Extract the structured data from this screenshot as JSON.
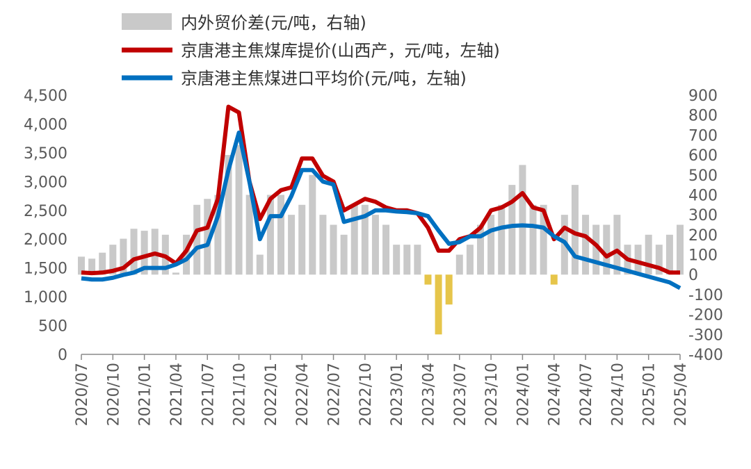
{
  "chart_data": {
    "type": "bar-line",
    "categories": [
      "2020/07",
      null,
      null,
      "2020/10",
      null,
      null,
      "2021/01",
      null,
      null,
      "2021/04",
      null,
      null,
      "2021/07",
      null,
      null,
      "2021/10",
      null,
      null,
      "2022/01",
      null,
      null,
      "2022/04",
      null,
      null,
      "2022/07",
      null,
      null,
      "2022/10",
      null,
      null,
      "2023/01",
      null,
      null,
      "2023/04",
      null,
      null,
      "2023/07",
      null,
      null,
      "2023/10",
      null,
      null,
      "2024/01",
      null,
      null,
      "2024/04",
      null,
      null,
      "2024/07",
      null,
      null,
      "2024/10",
      null,
      null,
      "2025/01",
      null,
      null,
      "2025/04"
    ],
    "series": [
      {
        "name": "内外贸价差(元/吨，右轴)",
        "kind": "bar",
        "axis": "y2",
        "color": "#c9c9c9",
        "negative_color": "#e6c54a",
        "values": [
          90,
          80,
          110,
          150,
          180,
          230,
          220,
          230,
          200,
          10,
          200,
          350,
          380,
          400,
          600,
          650,
          400,
          100,
          400,
          400,
          300,
          350,
          500,
          300,
          250,
          200,
          350,
          350,
          300,
          250,
          150,
          150,
          150,
          -50,
          -300,
          -150,
          100,
          150,
          250,
          300,
          350,
          450,
          550,
          350,
          350,
          -50,
          300,
          450,
          300,
          250,
          250,
          300,
          150,
          150,
          200,
          150,
          200,
          250
        ]
      },
      {
        "name": "京唐港主焦煤库提价(山西产，元/吨，左轴)",
        "kind": "line",
        "color": "#c00000",
        "values": [
          1420,
          1410,
          1420,
          1450,
          1500,
          1650,
          1700,
          1750,
          1700,
          1580,
          1800,
          2150,
          2200,
          2700,
          4300,
          4200,
          3000,
          2350,
          2700,
          2850,
          2900,
          3400,
          3400,
          3100,
          3000,
          2500,
          2600,
          2700,
          2650,
          2550,
          2500,
          2500,
          2450,
          2200,
          1800,
          1800,
          2000,
          2050,
          2200,
          2500,
          2550,
          2650,
          2800,
          2550,
          2500,
          2000,
          2200,
          2100,
          2050,
          1900,
          1700,
          1800,
          1650,
          1600,
          1550,
          1500,
          1420,
          1420
        ]
      },
      {
        "name": "京唐港主焦煤进口平均价(元/吨，左轴)",
        "kind": "line",
        "color": "#0070c0",
        "values": [
          1320,
          1300,
          1300,
          1330,
          1380,
          1420,
          1500,
          1500,
          1500,
          1560,
          1650,
          1850,
          1900,
          2400,
          3200,
          3850,
          3000,
          2000,
          2400,
          2400,
          2750,
          3200,
          3200,
          3000,
          2950,
          2300,
          2350,
          2400,
          2500,
          2500,
          2480,
          2470,
          2450,
          2400,
          2150,
          1920,
          1950,
          2050,
          2050,
          2150,
          2200,
          2230,
          2240,
          2230,
          2200,
          2050,
          1950,
          1700,
          1650,
          1600,
          1550,
          1500,
          1450,
          1400,
          1350,
          1300,
          1250,
          1150
        ]
      }
    ],
    "ylim": [
      0,
      4500
    ],
    "yticks": [
      0,
      {
        "value": 500,
        "label": "500"
      },
      {
        "value": 1000,
        "label": "1,000"
      },
      {
        "value": 1500,
        "label": "1,500"
      },
      {
        "value": 2000,
        "label": "2,000"
      },
      {
        "value": 2500,
        "label": "2,500"
      },
      {
        "value": 3000,
        "label": "3,000"
      },
      {
        "value": 3500,
        "label": "3,500"
      },
      {
        "value": 4000,
        "label": "4,000"
      },
      {
        "value": 4500,
        "label": "4,500"
      }
    ],
    "y2lim": [
      -400,
      900
    ],
    "y2ticks": [
      -400,
      -300,
      -200,
      -100,
      0,
      100,
      200,
      300,
      400,
      500,
      600,
      700,
      800,
      900
    ],
    "legend": "top"
  }
}
